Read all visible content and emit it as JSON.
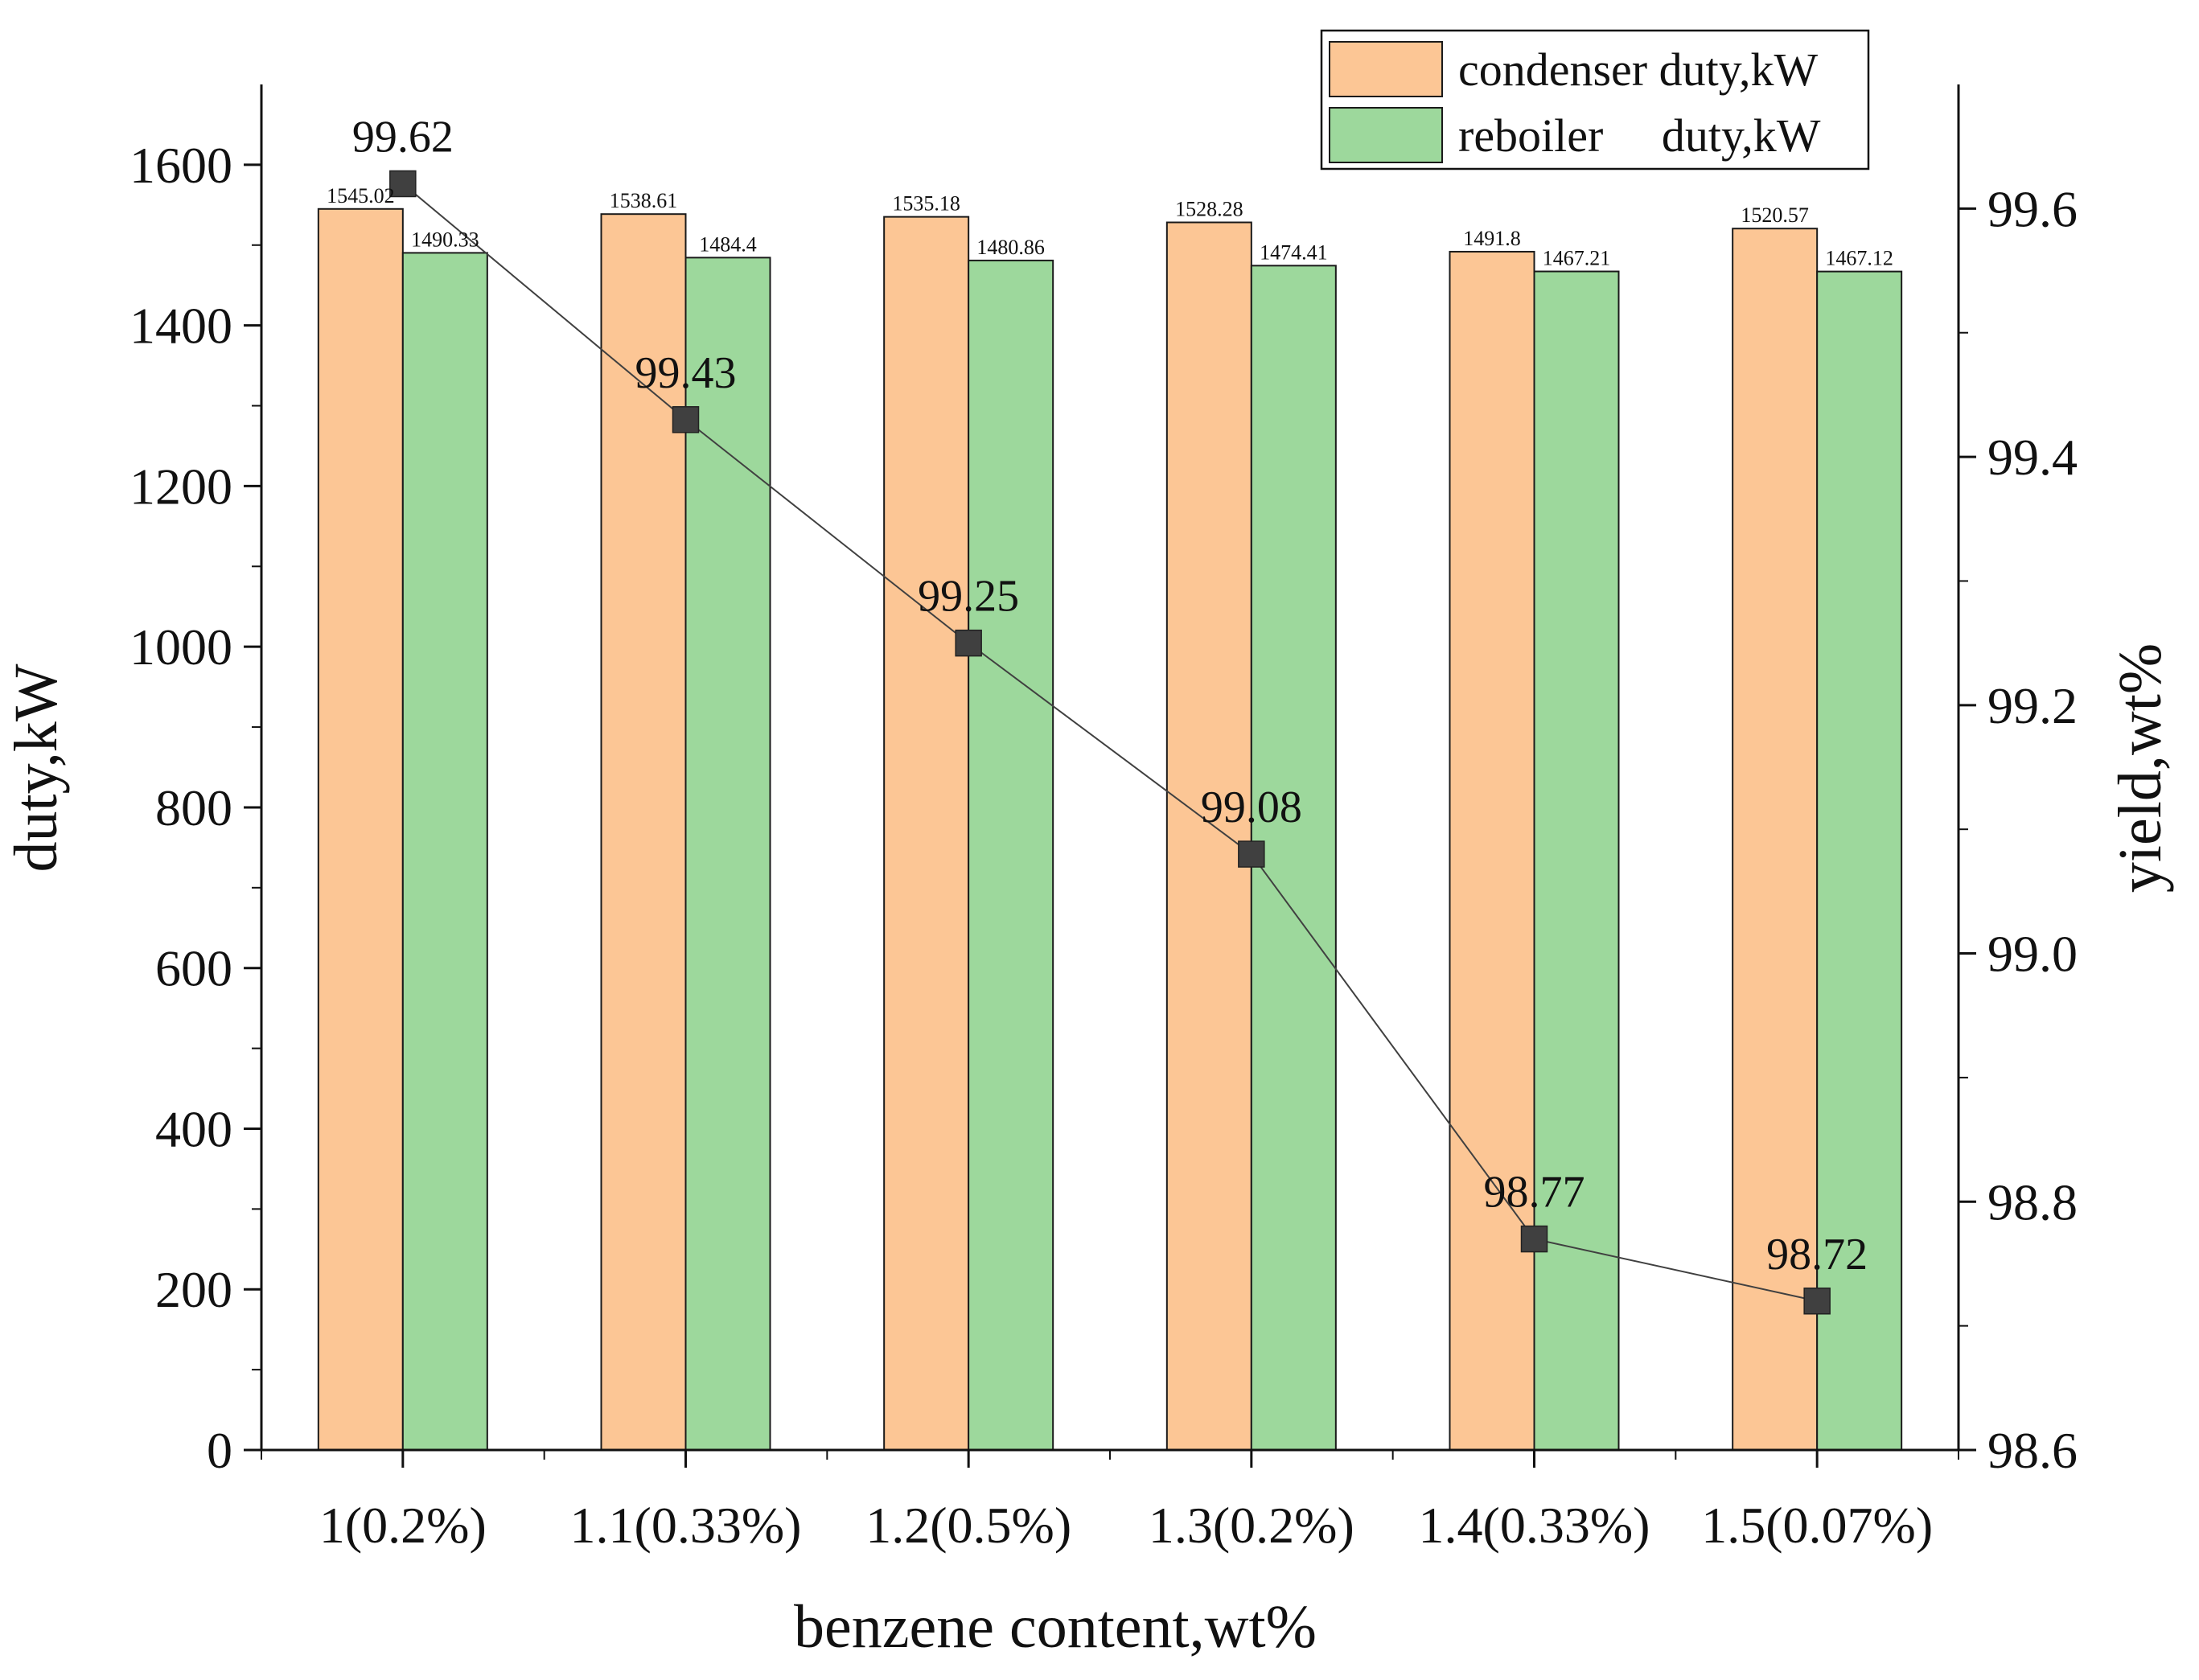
{
  "chart_data": {
    "type": "bar",
    "title": "",
    "xlabel": "benzene content,wt%",
    "ylabel": "duty,kW",
    "y2label": "yield,wt%",
    "categories": [
      "1(0.2%)",
      "1.1(0.33%)",
      "1.2(0.5%)",
      "1.3(0.2%)",
      "1.4(0.33%)",
      "1.5(0.07%)"
    ],
    "ylim": [
      0,
      1700
    ],
    "yticks": [
      0,
      200,
      400,
      600,
      800,
      1000,
      1200,
      1400,
      1600
    ],
    "y2lim": [
      98.6,
      99.7
    ],
    "y2ticks": [
      "98.6",
      "98.8",
      "99.0",
      "99.2",
      "99.4",
      "99.6"
    ],
    "series": [
      {
        "name": "condenser duty,kW",
        "kind": "bar",
        "axis": "left",
        "color": "#FCC695",
        "values": [
          1545.02,
          1538.61,
          1535.18,
          1528.28,
          1491.8,
          1520.57
        ],
        "labels": [
          "1545.02",
          "1538.61",
          "1535.18",
          "1528.28",
          "1491.8",
          "1520.57"
        ]
      },
      {
        "name": "reboiler     duty,kW",
        "kind": "bar",
        "axis": "left",
        "color": "#9DD89C",
        "values": [
          1490.33,
          1484.4,
          1480.86,
          1474.41,
          1467.21,
          1467.12
        ],
        "labels": [
          "1490.33",
          "1484.4",
          "1480.86",
          "1474.41",
          "1467.21",
          "1467.12"
        ]
      },
      {
        "name": "yield",
        "kind": "line",
        "axis": "right",
        "color": "#404040",
        "marker": "square",
        "values": [
          99.62,
          99.43,
          99.25,
          99.08,
          98.77,
          98.72
        ],
        "labels": [
          "99.62",
          "99.43",
          "99.25",
          "99.08",
          "98.77",
          "98.72"
        ]
      }
    ],
    "legend": {
      "position": "top-right",
      "entries": [
        "condenser duty,kW",
        "reboiler     duty,kW"
      ]
    },
    "grid": false
  }
}
